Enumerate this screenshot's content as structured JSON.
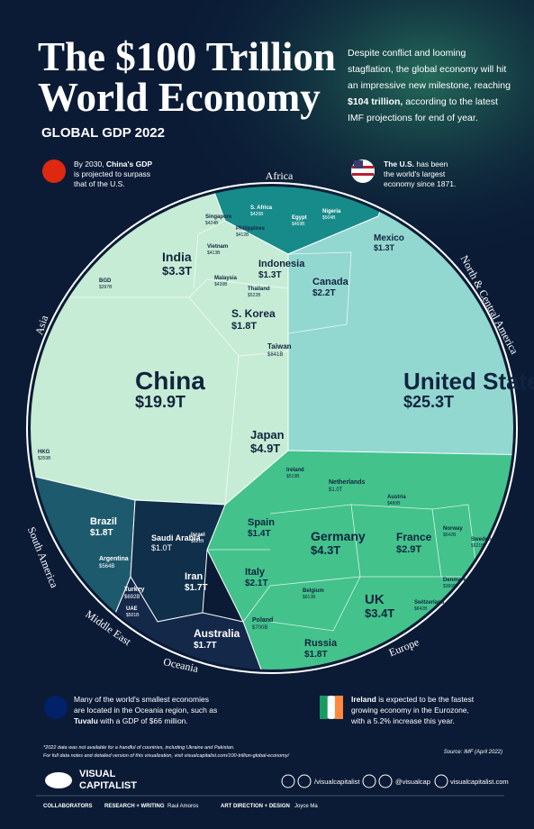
{
  "header": {
    "title_line1": "The $100 Trillion",
    "title_line2": "World Economy",
    "subtitle": "GLOBAL GDP 2022",
    "intro": [
      "Despite conflict and looming",
      "stagflation, the global economy will hit",
      "an impressive new milestone, reaching",
      {
        "bold": "$104 trillion,",
        "text": " according to the latest"
      },
      "IMF projections for end of year."
    ]
  },
  "callouts": {
    "china": [
      {
        "text": "By 2030, ",
        "bold": "China's GDP"
      },
      "is projected to surpass",
      "that of the U.S."
    ],
    "us": [
      {
        "bold": "The U.S.",
        "text": " has been"
      },
      "the world's largest",
      "economy since 1871."
    ],
    "oceania": [
      "Many of the world's smallest economies",
      "are located in the Oceania region, such as",
      {
        "bold": "Tuvalu",
        "text": " with a GDP of $66 million."
      }
    ],
    "ireland": [
      {
        "bold": "Ireland",
        "text": " is expected to be the fastest"
      },
      "growing economy in the Eurozone,",
      "with a 5.2% increase this year."
    ]
  },
  "regions": [
    "Africa",
    "North & Central America",
    "Asia",
    "South America",
    "Middle East",
    "Oceania",
    "Europe"
  ],
  "countries": [
    {
      "name": "China",
      "gdp": "$19.9T"
    },
    {
      "name": "United States",
      "gdp": "$25.3T"
    },
    {
      "name": "Japan",
      "gdp": "$4.9T"
    },
    {
      "name": "India",
      "gdp": "$3.3T"
    },
    {
      "name": "S. Korea",
      "gdp": "$1.8T"
    },
    {
      "name": "Indonesia",
      "gdp": "$1.3T"
    },
    {
      "name": "Canada",
      "gdp": "$2.2T"
    },
    {
      "name": "Mexico",
      "gdp": "$1.3T"
    },
    {
      "name": "Germany",
      "gdp": "$4.3T"
    },
    {
      "name": "France",
      "gdp": "$2.9T"
    },
    {
      "name": "UK",
      "gdp": "$3.4T"
    },
    {
      "name": "Italy",
      "gdp": "$2.1T"
    },
    {
      "name": "Spain",
      "gdp": "$1.4T"
    },
    {
      "name": "Russia",
      "gdp": "$1.8T"
    },
    {
      "name": "Brazil",
      "gdp": "$1.8T"
    },
    {
      "name": "Saudi Arabia",
      "gdp": "$1.0T"
    },
    {
      "name": "Iran",
      "gdp": "$1.7T"
    },
    {
      "name": "Australia",
      "gdp": "$1.7T"
    },
    {
      "name": "Netherlands",
      "gdp": "$1.0T"
    },
    {
      "name": "Taiwan",
      "gdp": "$841B"
    },
    {
      "name": "Thailand",
      "gdp": "$522B"
    },
    {
      "name": "Malaysia",
      "gdp": "$439B"
    },
    {
      "name": "Vietnam",
      "gdp": "$413B"
    },
    {
      "name": "Singapore",
      "gdp": "$424B"
    },
    {
      "name": "Philippines",
      "gdp": "$412B"
    },
    {
      "name": "Switzerland",
      "gdp": "$842B"
    },
    {
      "name": "Poland",
      "gdp": "$700B"
    },
    {
      "name": "Turkey",
      "gdp": "$692B"
    },
    {
      "name": "Argentina",
      "gdp": "$564B"
    },
    {
      "name": "Belgium",
      "gdp": "$613B"
    },
    {
      "name": "Sweden",
      "gdp": "$621B"
    },
    {
      "name": "Norway",
      "gdp": "$542B"
    },
    {
      "name": "Israel",
      "gdp": "$521B"
    },
    {
      "name": "Egypt",
      "gdp": "$469B"
    },
    {
      "name": "Nigeria",
      "gdp": "$504B"
    },
    {
      "name": "S. Africa",
      "gdp": "$426B"
    },
    {
      "name": "Ireland",
      "gdp": "$519B"
    },
    {
      "name": "Austria",
      "gdp": "$480B"
    },
    {
      "name": "UAE",
      "gdp": "$501B"
    },
    {
      "name": "Denmark",
      "gdp": "$386B"
    },
    {
      "name": "BGD",
      "gdp": "$397B"
    },
    {
      "name": "HKG",
      "gdp": "$359B"
    }
  ],
  "footer": {
    "note1": "*2022 data was not available for a handful of countries, including Ukraine and Pakistan.",
    "note2": "For full data notes and detailed version of this visualization, visit visualcapitalist.com/100-trillion-global-economy/",
    "source": "Source: IMF (April 2022)",
    "brand1": "VISUAL",
    "brand2": "CAPITALIST",
    "social": [
      "/visualcapitalist",
      "@visualcap",
      "visualcapitalist.com"
    ],
    "collaborators": "COLLABORATORS",
    "research_label": "RESEARCH + WRITING",
    "research": "Raul Amoros",
    "design_label": "ART DIRECTION + DESIGN",
    "design": "Joyce Ma"
  }
}
